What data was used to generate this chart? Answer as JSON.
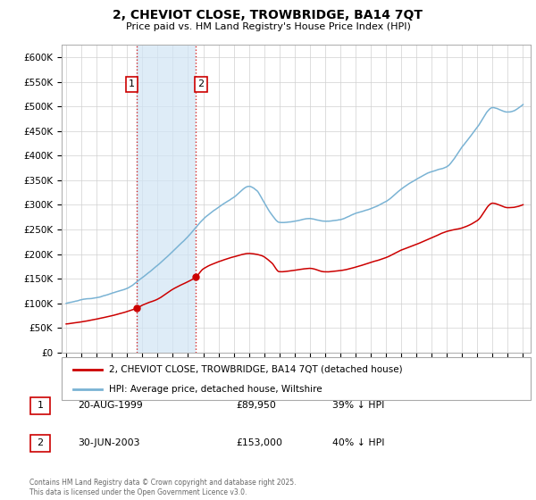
{
  "title": "2, CHEVIOT CLOSE, TROWBRIDGE, BA14 7QT",
  "subtitle": "Price paid vs. HM Land Registry's House Price Index (HPI)",
  "ylabel_ticks": [
    "£0",
    "£50K",
    "£100K",
    "£150K",
    "£200K",
    "£250K",
    "£300K",
    "£350K",
    "£400K",
    "£450K",
    "£500K",
    "£550K",
    "£600K"
  ],
  "ytick_values": [
    0,
    50000,
    100000,
    150000,
    200000,
    250000,
    300000,
    350000,
    400000,
    450000,
    500000,
    550000,
    600000
  ],
  "ylim": [
    0,
    625000
  ],
  "xlim_start": 1994.7,
  "xlim_end": 2025.5,
  "sale1_x": 1999.64,
  "sale1_y": 89950,
  "sale2_x": 2003.5,
  "sale2_y": 153000,
  "hpi_color": "#7ab3d4",
  "price_color": "#cc0000",
  "shading_color": "#d0e4f5",
  "legend_label_price": "2, CHEVIOT CLOSE, TROWBRIDGE, BA14 7QT (detached house)",
  "legend_label_hpi": "HPI: Average price, detached house, Wiltshire",
  "footer": "Contains HM Land Registry data © Crown copyright and database right 2025.\nThis data is licensed under the Open Government Licence v3.0.",
  "table_rows": [
    {
      "num": "1",
      "date": "20-AUG-1999",
      "price": "£89,950",
      "pct": "39% ↓ HPI"
    },
    {
      "num": "2",
      "date": "30-JUN-2003",
      "price": "£153,000",
      "pct": "40% ↓ HPI"
    }
  ],
  "hpi_knots_x": [
    1995,
    1996,
    1997,
    1998,
    1999,
    2000,
    2001,
    2002,
    2003,
    2004,
    2005,
    2006,
    2007,
    2007.5,
    2008,
    2008.5,
    2009,
    2010,
    2011,
    2012,
    2013,
    2014,
    2015,
    2016,
    2017,
    2018,
    2019,
    2020,
    2021,
    2022,
    2023,
    2024,
    2025
  ],
  "hpi_knots_y": [
    100000,
    107000,
    112000,
    120000,
    130000,
    152000,
    177000,
    205000,
    235000,
    270000,
    295000,
    315000,
    338000,
    330000,
    305000,
    280000,
    265000,
    268000,
    273000,
    268000,
    272000,
    285000,
    295000,
    310000,
    335000,
    355000,
    370000,
    380000,
    420000,
    460000,
    500000,
    490000,
    505000
  ],
  "red_knots_x": [
    1995,
    1996,
    1997,
    1998,
    1999.64,
    2000,
    2001,
    2002,
    2003.5,
    2004,
    2005,
    2006,
    2007,
    2007.8,
    2008.5,
    2009,
    2010,
    2011,
    2012,
    2013,
    2014,
    2015,
    2016,
    2017,
    2018,
    2019,
    2020,
    2021,
    2022,
    2023,
    2024,
    2025
  ],
  "red_knots_y": [
    58000,
    62000,
    68000,
    75000,
    89950,
    96000,
    108000,
    128000,
    153000,
    170000,
    185000,
    195000,
    202000,
    198000,
    183000,
    165000,
    168000,
    172000,
    165000,
    168000,
    175000,
    185000,
    195000,
    210000,
    222000,
    235000,
    248000,
    255000,
    270000,
    305000,
    296000,
    302000
  ]
}
